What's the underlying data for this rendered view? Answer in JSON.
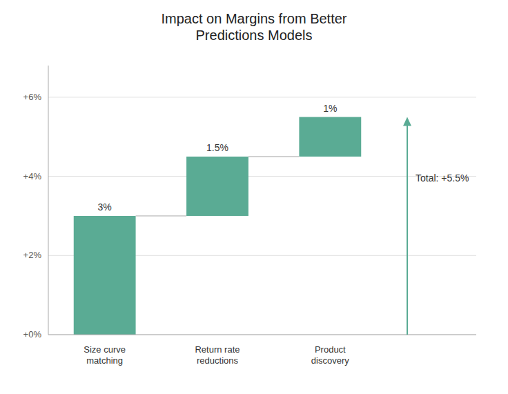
{
  "chart_data": {
    "type": "waterfall",
    "title": "Impact on Margins from Better\nPredictions Models",
    "categories": [
      "Size curve\nmatching",
      "Return rate\nreductions",
      "Product\ndiscovery"
    ],
    "values": [
      3,
      1.5,
      1
    ],
    "value_labels": [
      "3%",
      "1.5%",
      "1%"
    ],
    "data_labels": true,
    "color": "#5aab94",
    "ylim": [
      0,
      6.8
    ],
    "yticks": [
      {
        "value": 0,
        "label": "+0%"
      },
      {
        "value": 2,
        "label": "+2%"
      },
      {
        "value": 4,
        "label": "+4%"
      },
      {
        "value": 6,
        "label": "+6%"
      }
    ],
    "grid": true,
    "annotations": [
      {
        "text": "Total: +5.5%",
        "value": 5.5
      }
    ]
  }
}
